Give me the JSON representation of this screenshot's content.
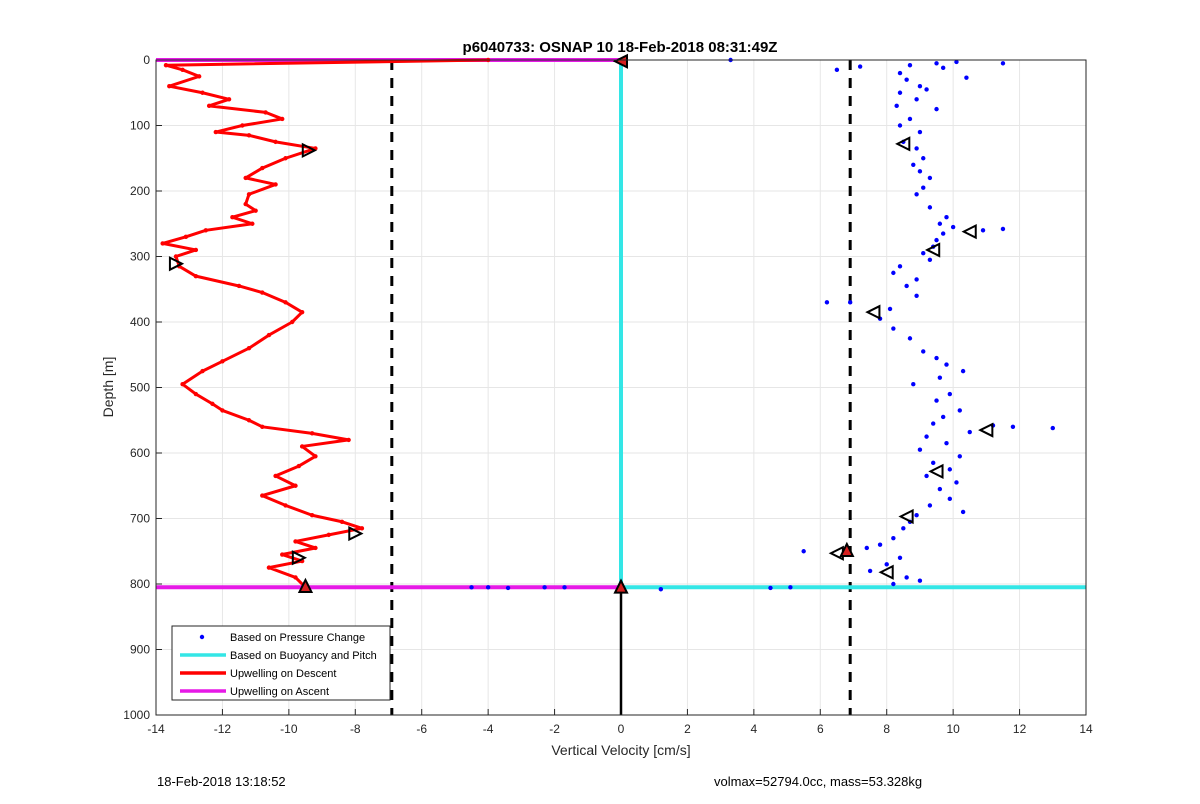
{
  "footer": {
    "left": "18-Feb-2018 13:18:52",
    "right": "volmax=52794.0cc, mass=53.328kg"
  },
  "colors": {
    "pressure": "#0000ff",
    "buoyancy": "#33e6e6",
    "descent": "#ff0000",
    "ascent": "#e619e6",
    "grid": "#e6e6e6",
    "reference_lines": "#000000"
  },
  "chart_data": {
    "type": "line",
    "title": "p6040733: OSNAP 10 18-Feb-2018 08:31:49Z",
    "xlabel": "Vertical Velocity [cm/s]",
    "ylabel": "Depth [m]",
    "xlim": [
      -14,
      14
    ],
    "ylim": [
      0,
      1000
    ],
    "y_reversed": true,
    "grid": true,
    "legend_position": "bottom-left",
    "x_ticks": [
      "-14",
      "-12",
      "-10",
      "-8",
      "-6",
      "-4",
      "-2",
      "0",
      "2",
      "4",
      "6",
      "8",
      "10",
      "12",
      "14"
    ],
    "y_ticks": [
      "0",
      "100",
      "200",
      "300",
      "400",
      "500",
      "600",
      "700",
      "800",
      "900",
      "1000"
    ],
    "reference_lines": [
      {
        "x": -6.9,
        "style": "dashed"
      },
      {
        "x": 6.9,
        "style": "dashed"
      },
      {
        "x": 0,
        "depth_from": 805,
        "depth_to": 1000,
        "style": "solid"
      }
    ],
    "series": [
      {
        "name": "Based on Pressure Change",
        "style": "points",
        "points": [
          [
            3.3,
            0
          ],
          [
            9.5,
            5
          ],
          [
            10.1,
            3
          ],
          [
            11.5,
            5
          ],
          [
            8.7,
            8
          ],
          [
            9.7,
            12
          ],
          [
            10.4,
            27
          ],
          [
            8.4,
            20
          ],
          [
            7.2,
            10
          ],
          [
            6.5,
            15
          ],
          [
            8.6,
            30
          ],
          [
            9.0,
            40
          ],
          [
            8.4,
            50
          ],
          [
            9.2,
            45
          ],
          [
            8.9,
            60
          ],
          [
            8.3,
            70
          ],
          [
            9.5,
            75
          ],
          [
            8.7,
            90
          ],
          [
            8.4,
            100
          ],
          [
            9.0,
            110
          ],
          [
            8.5,
            125
          ],
          [
            8.9,
            135
          ],
          [
            9.1,
            150
          ],
          [
            8.8,
            160
          ],
          [
            9.0,
            170
          ],
          [
            9.3,
            180
          ],
          [
            9.1,
            195
          ],
          [
            8.9,
            205
          ],
          [
            9.3,
            225
          ],
          [
            9.8,
            240
          ],
          [
            9.6,
            250
          ],
          [
            10.0,
            255
          ],
          [
            10.9,
            260
          ],
          [
            11.5,
            258
          ],
          [
            9.7,
            265
          ],
          [
            9.5,
            275
          ],
          [
            9.4,
            285
          ],
          [
            9.1,
            295
          ],
          [
            9.3,
            305
          ],
          [
            8.4,
            315
          ],
          [
            8.2,
            325
          ],
          [
            8.9,
            335
          ],
          [
            8.6,
            345
          ],
          [
            8.9,
            360
          ],
          [
            6.9,
            370
          ],
          [
            6.2,
            370
          ],
          [
            8.1,
            380
          ],
          [
            7.8,
            395
          ],
          [
            8.2,
            410
          ],
          [
            8.7,
            425
          ],
          [
            9.1,
            445
          ],
          [
            9.5,
            455
          ],
          [
            9.8,
            465
          ],
          [
            10.3,
            475
          ],
          [
            9.6,
            485
          ],
          [
            8.8,
            495
          ],
          [
            9.9,
            510
          ],
          [
            9.5,
            520
          ],
          [
            10.2,
            535
          ],
          [
            9.7,
            545
          ],
          [
            9.4,
            555
          ],
          [
            11.2,
            558
          ],
          [
            11.8,
            560
          ],
          [
            13.0,
            562
          ],
          [
            10.5,
            568
          ],
          [
            9.2,
            575
          ],
          [
            9.8,
            585
          ],
          [
            9.0,
            595
          ],
          [
            10.2,
            605
          ],
          [
            9.4,
            615
          ],
          [
            9.9,
            625
          ],
          [
            9.2,
            635
          ],
          [
            10.1,
            645
          ],
          [
            9.6,
            655
          ],
          [
            9.9,
            670
          ],
          [
            9.3,
            680
          ],
          [
            10.3,
            690
          ],
          [
            8.9,
            695
          ],
          [
            8.7,
            705
          ],
          [
            8.5,
            715
          ],
          [
            8.2,
            730
          ],
          [
            7.8,
            740
          ],
          [
            7.4,
            745
          ],
          [
            5.5,
            750
          ],
          [
            6.9,
            755
          ],
          [
            8.4,
            760
          ],
          [
            8.0,
            770
          ],
          [
            7.5,
            780
          ],
          [
            8.6,
            790
          ],
          [
            8.2,
            800
          ],
          [
            9.0,
            795
          ],
          [
            -1.7,
            805
          ],
          [
            -2.3,
            805
          ],
          [
            -3.4,
            806
          ],
          [
            -4.0,
            805
          ],
          [
            -4.5,
            805
          ],
          [
            4.5,
            806
          ],
          [
            5.1,
            805
          ],
          [
            1.2,
            808
          ]
        ]
      },
      {
        "name": "Based on Buoyancy and Pitch",
        "style": "line",
        "points": [
          [
            0,
            0
          ],
          [
            0,
            805
          ],
          [
            14,
            805
          ]
        ]
      },
      {
        "name": "Upwelling on Descent",
        "style": "line",
        "points": [
          [
            -4,
            0
          ],
          [
            -13.7,
            8
          ],
          [
            -13.2,
            15
          ],
          [
            -12.7,
            25
          ],
          [
            -13.6,
            40
          ],
          [
            -12.6,
            50
          ],
          [
            -11.8,
            60
          ],
          [
            -12.4,
            70
          ],
          [
            -10.7,
            80
          ],
          [
            -10.2,
            90
          ],
          [
            -11.4,
            100
          ],
          [
            -12.2,
            110
          ],
          [
            -11.2,
            115
          ],
          [
            -10.4,
            125
          ],
          [
            -9.2,
            135
          ],
          [
            -10.1,
            150
          ],
          [
            -10.8,
            165
          ],
          [
            -11.3,
            180
          ],
          [
            -10.4,
            190
          ],
          [
            -11.2,
            205
          ],
          [
            -11.3,
            220
          ],
          [
            -11.0,
            230
          ],
          [
            -11.7,
            240
          ],
          [
            -11.1,
            250
          ],
          [
            -12.5,
            260
          ],
          [
            -13.1,
            270
          ],
          [
            -13.8,
            280
          ],
          [
            -12.8,
            290
          ],
          [
            -13.4,
            300
          ],
          [
            -13.3,
            315
          ],
          [
            -12.8,
            330
          ],
          [
            -11.5,
            345
          ],
          [
            -10.8,
            355
          ],
          [
            -10.1,
            370
          ],
          [
            -9.6,
            385
          ],
          [
            -9.9,
            400
          ],
          [
            -10.6,
            420
          ],
          [
            -11.2,
            440
          ],
          [
            -12.0,
            460
          ],
          [
            -12.6,
            475
          ],
          [
            -13.2,
            495
          ],
          [
            -12.8,
            510
          ],
          [
            -12.3,
            525
          ],
          [
            -12.0,
            535
          ],
          [
            -11.2,
            550
          ],
          [
            -10.8,
            560
          ],
          [
            -9.3,
            570
          ],
          [
            -8.2,
            580
          ],
          [
            -9.6,
            590
          ],
          [
            -9.2,
            605
          ],
          [
            -9.7,
            620
          ],
          [
            -10.4,
            635
          ],
          [
            -9.8,
            650
          ],
          [
            -10.8,
            665
          ],
          [
            -10.1,
            680
          ],
          [
            -9.3,
            695
          ],
          [
            -8.4,
            705
          ],
          [
            -7.8,
            715
          ],
          [
            -8.8,
            725
          ],
          [
            -9.8,
            735
          ],
          [
            -9.2,
            745
          ],
          [
            -10.2,
            755
          ],
          [
            -9.6,
            765
          ],
          [
            -10.6,
            775
          ],
          [
            -9.8,
            790
          ],
          [
            -9.5,
            805
          ]
        ]
      },
      {
        "name": "Upwelling on Ascent",
        "style": "line",
        "points": [
          [
            -14,
            0
          ],
          [
            0,
            0
          ],
          [
            -14,
            805
          ],
          [
            0,
            805
          ]
        ]
      }
    ],
    "triangle_markers": [
      {
        "x": 0,
        "y": 2,
        "dir": "left",
        "fill": "red"
      },
      {
        "x": -9.4,
        "y": 138,
        "dir": "right",
        "fill": "none"
      },
      {
        "x": -13.4,
        "y": 311,
        "dir": "right",
        "fill": "none"
      },
      {
        "x": -8.0,
        "y": 723,
        "dir": "right",
        "fill": "none"
      },
      {
        "x": -9.7,
        "y": 760,
        "dir": "right",
        "fill": "none"
      },
      {
        "x": -9.5,
        "y": 803,
        "dir": "up",
        "fill": "red"
      },
      {
        "x": 0,
        "y": 804,
        "dir": "up",
        "fill": "red"
      },
      {
        "x": 8.5,
        "y": 128,
        "dir": "left",
        "fill": "none"
      },
      {
        "x": 10.5,
        "y": 262,
        "dir": "left",
        "fill": "none"
      },
      {
        "x": 9.4,
        "y": 290,
        "dir": "left",
        "fill": "none"
      },
      {
        "x": 7.6,
        "y": 385,
        "dir": "left",
        "fill": "none"
      },
      {
        "x": 11.0,
        "y": 565,
        "dir": "left",
        "fill": "none"
      },
      {
        "x": 9.5,
        "y": 628,
        "dir": "left",
        "fill": "none"
      },
      {
        "x": 8.6,
        "y": 697,
        "dir": "left",
        "fill": "none"
      },
      {
        "x": 6.5,
        "y": 753,
        "dir": "left",
        "fill": "none"
      },
      {
        "x": 6.8,
        "y": 748,
        "dir": "up",
        "fill": "red"
      },
      {
        "x": 8.0,
        "y": 782,
        "dir": "left",
        "fill": "none"
      }
    ]
  }
}
